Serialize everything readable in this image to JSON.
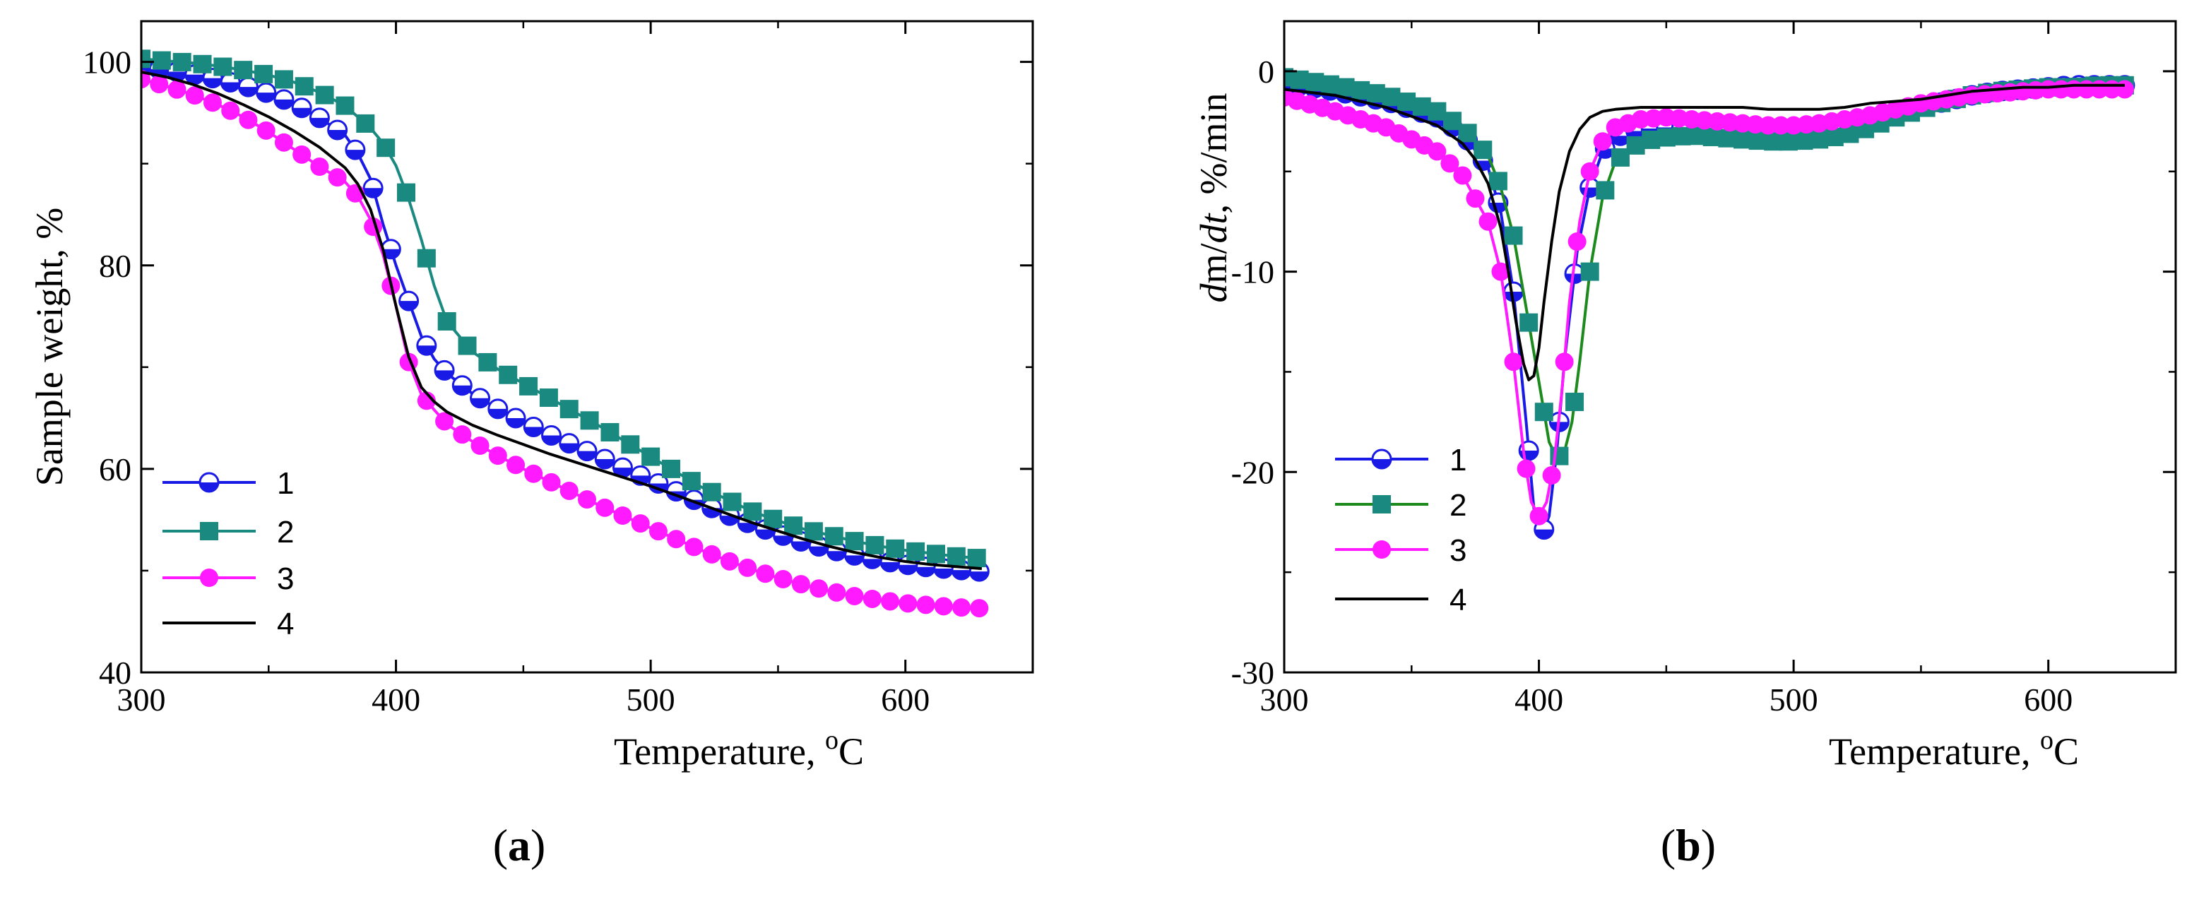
{
  "figure": {
    "background": "#ffffff"
  },
  "colors": {
    "s1": "#1a1ae6",
    "s2": "#1a8a80",
    "s3": "#ff1aff",
    "s4": "#000000",
    "green": "#1d8a1d"
  },
  "chart_data": [
    {
      "id": "a",
      "type": "line",
      "panel_label_open": "(",
      "panel_label_letter": "a",
      "panel_label_close": ")",
      "xlabel": "Temperature, ",
      "xlabel_unit_sup": "o",
      "xlabel_unit": "C",
      "ylabel": "Sample weight, %",
      "xlim": [
        300,
        650
      ],
      "ylim": [
        40,
        104
      ],
      "xticks": [
        300,
        400,
        500,
        600
      ],
      "yticks": [
        40,
        60,
        80,
        100
      ],
      "legend_position": "bottom-left",
      "series": [
        {
          "name": "1",
          "color": "#1a1ae6",
          "marker": "half-circle",
          "marker_every": 7,
          "x": [
            300,
            310,
            320,
            330,
            340,
            350,
            360,
            370,
            380,
            385,
            390,
            395,
            400,
            405,
            410,
            415,
            420,
            430,
            440,
            450,
            460,
            470,
            480,
            490,
            500,
            510,
            520,
            530,
            540,
            550,
            560,
            570,
            580,
            590,
            600,
            610,
            620,
            630
          ],
          "y": [
            99.5,
            99.2,
            98.8,
            98.3,
            97.7,
            96.9,
            95.9,
            94.5,
            92.8,
            91.0,
            88.5,
            84.0,
            80.0,
            76.5,
            73.0,
            70.8,
            69.4,
            67.4,
            65.9,
            64.6,
            63.4,
            62.3,
            61.2,
            60.0,
            58.9,
            57.8,
            56.6,
            55.5,
            54.5,
            53.6,
            52.8,
            52.1,
            51.5,
            51.0,
            50.6,
            50.3,
            50.1,
            49.9
          ]
        },
        {
          "name": "2",
          "color": "#1a8a80",
          "marker": "square",
          "marker_every": 8,
          "x": [
            300,
            310,
            320,
            330,
            340,
            350,
            360,
            370,
            380,
            390,
            395,
            400,
            405,
            410,
            415,
            420,
            430,
            440,
            450,
            460,
            470,
            480,
            490,
            500,
            510,
            520,
            530,
            540,
            550,
            560,
            570,
            580,
            590,
            600,
            610,
            620,
            630
          ],
          "y": [
            100.3,
            100.1,
            99.9,
            99.6,
            99.2,
            98.7,
            98.0,
            97.0,
            95.7,
            93.5,
            92.0,
            89.8,
            86.5,
            82.5,
            78.0,
            74.5,
            71.5,
            69.8,
            68.4,
            67.0,
            65.6,
            64.2,
            62.7,
            61.2,
            59.7,
            58.2,
            57.0,
            55.8,
            54.9,
            54.1,
            53.5,
            52.9,
            52.4,
            52.0,
            51.7,
            51.4,
            51.2
          ]
        },
        {
          "name": "3",
          "color": "#ff1aff",
          "marker": "circle",
          "marker_every": 7,
          "x": [
            300,
            310,
            320,
            330,
            340,
            350,
            360,
            370,
            380,
            385,
            390,
            395,
            400,
            405,
            410,
            415,
            420,
            430,
            440,
            450,
            460,
            470,
            480,
            490,
            500,
            510,
            520,
            530,
            540,
            550,
            560,
            570,
            580,
            590,
            600,
            610,
            620,
            630
          ],
          "y": [
            98.3,
            97.6,
            96.8,
            95.8,
            94.6,
            93.1,
            91.4,
            89.7,
            88.2,
            86.8,
            84.5,
            81.0,
            76.0,
            70.5,
            67.3,
            65.8,
            64.4,
            62.7,
            61.3,
            60.0,
            58.8,
            57.6,
            56.4,
            55.3,
            54.2,
            53.1,
            52.0,
            51.0,
            50.1,
            49.3,
            48.6,
            48.0,
            47.5,
            47.1,
            46.8,
            46.6,
            46.4,
            46.3
          ]
        },
        {
          "name": "4",
          "color": "#000000",
          "marker": "none",
          "x": [
            300,
            310,
            320,
            330,
            340,
            350,
            360,
            370,
            380,
            385,
            390,
            395,
            400,
            405,
            410,
            415,
            420,
            430,
            440,
            450,
            460,
            470,
            480,
            490,
            500,
            510,
            520,
            530,
            540,
            550,
            560,
            570,
            580,
            590,
            600,
            610,
            620,
            630
          ],
          "y": [
            99.0,
            98.5,
            97.8,
            96.9,
            95.8,
            94.6,
            93.2,
            91.6,
            89.6,
            88.0,
            85.5,
            81.5,
            76.0,
            71.0,
            68.0,
            66.6,
            65.6,
            64.3,
            63.3,
            62.4,
            61.5,
            60.7,
            59.9,
            59.1,
            58.3,
            57.4,
            56.5,
            55.6,
            54.7,
            53.9,
            53.1,
            52.4,
            51.8,
            51.3,
            50.9,
            50.6,
            50.4,
            50.2
          ]
        }
      ]
    },
    {
      "id": "b",
      "type": "line",
      "panel_label_open": "(",
      "panel_label_letter": "b",
      "panel_label_close": ")",
      "xlabel": "Temperature, ",
      "xlabel_unit_sup": "o",
      "xlabel_unit": "C",
      "ylabel_italic_1": "d",
      "ylabel_mid": "m/",
      "ylabel_italic_2": "dt",
      "ylabel_tail": ", %/min",
      "xlim": [
        300,
        650
      ],
      "ylim": [
        -30,
        2.5
      ],
      "xticks": [
        300,
        400,
        500,
        600
      ],
      "yticks": [
        -30,
        -20,
        -10,
        0
      ],
      "legend_position": "bottom-left",
      "series": [
        {
          "name": "1",
          "color": "#1a1ae6",
          "marker": "half-circle",
          "marker_every": 6,
          "x": [
            300,
            320,
            340,
            360,
            370,
            380,
            385,
            390,
            395,
            398,
            401,
            404,
            407,
            410,
            415,
            420,
            425,
            430,
            440,
            450,
            460,
            470,
            480,
            490,
            500,
            510,
            520,
            530,
            540,
            550,
            560,
            570,
            580,
            590,
            600,
            610,
            620,
            630
          ],
          "y": [
            -0.6,
            -1.0,
            -1.5,
            -2.3,
            -3.1,
            -4.8,
            -7.0,
            -11.0,
            -17.5,
            -21.8,
            -23.2,
            -22.2,
            -19.0,
            -14.5,
            -9.0,
            -5.8,
            -4.0,
            -3.3,
            -2.9,
            -2.8,
            -2.8,
            -2.9,
            -3.0,
            -3.0,
            -3.0,
            -3.0,
            -2.9,
            -2.6,
            -2.2,
            -1.8,
            -1.5,
            -1.2,
            -1.0,
            -0.9,
            -0.8,
            -0.7,
            -0.7,
            -0.7
          ]
        },
        {
          "name": "2",
          "color": "#1d8a1d",
          "marker_color": "#1a8a80",
          "marker": "square",
          "marker_every": 6,
          "x": [
            300,
            320,
            340,
            360,
            370,
            380,
            385,
            390,
            395,
            400,
            404,
            407,
            410,
            413,
            416,
            420,
            425,
            430,
            440,
            450,
            460,
            470,
            480,
            490,
            500,
            510,
            520,
            530,
            540,
            550,
            560,
            570,
            580,
            590,
            600,
            610,
            620,
            630
          ],
          "y": [
            -0.3,
            -0.7,
            -1.2,
            -2.0,
            -2.8,
            -4.2,
            -5.8,
            -8.2,
            -11.8,
            -15.5,
            -18.5,
            -19.3,
            -19.0,
            -17.5,
            -14.5,
            -10.0,
            -6.3,
            -4.5,
            -3.5,
            -3.3,
            -3.2,
            -3.3,
            -3.4,
            -3.5,
            -3.5,
            -3.4,
            -3.2,
            -2.8,
            -2.3,
            -1.9,
            -1.5,
            -1.2,
            -1.0,
            -0.9,
            -0.8,
            -0.8,
            -0.7,
            -0.7
          ]
        },
        {
          "name": "3",
          "color": "#ff1aff",
          "marker": "circle",
          "marker_every": 5,
          "x": [
            300,
            320,
            340,
            360,
            370,
            380,
            385,
            390,
            394,
            397,
            400,
            403,
            406,
            409,
            412,
            416,
            420,
            425,
            430,
            440,
            450,
            460,
            470,
            480,
            490,
            500,
            510,
            520,
            530,
            540,
            550,
            560,
            570,
            580,
            590,
            600,
            610,
            620,
            630
          ],
          "y": [
            -1.3,
            -2.0,
            -2.8,
            -4.0,
            -5.2,
            -7.5,
            -10.0,
            -14.5,
            -19.0,
            -21.5,
            -22.2,
            -21.5,
            -19.5,
            -16.0,
            -11.5,
            -7.5,
            -5.0,
            -3.5,
            -2.8,
            -2.4,
            -2.3,
            -2.4,
            -2.5,
            -2.6,
            -2.7,
            -2.7,
            -2.6,
            -2.4,
            -2.2,
            -1.9,
            -1.6,
            -1.4,
            -1.2,
            -1.1,
            -1.0,
            -0.9,
            -0.9,
            -0.9,
            -0.9
          ]
        },
        {
          "name": "4",
          "color": "#000000",
          "marker": "none",
          "x": [
            300,
            320,
            340,
            360,
            370,
            375,
            380,
            385,
            388,
            391,
            394,
            396,
            398,
            400,
            402,
            405,
            408,
            412,
            416,
            420,
            425,
            430,
            440,
            450,
            460,
            470,
            480,
            490,
            500,
            510,
            520,
            530,
            540,
            550,
            560,
            570,
            580,
            590,
            600,
            610,
            620,
            630
          ],
          "y": [
            -0.9,
            -1.2,
            -1.8,
            -2.7,
            -3.6,
            -4.4,
            -5.6,
            -7.8,
            -10.0,
            -12.5,
            -14.6,
            -15.4,
            -15.2,
            -13.8,
            -11.5,
            -8.5,
            -6.0,
            -4.0,
            -2.9,
            -2.3,
            -2.0,
            -1.9,
            -1.8,
            -1.8,
            -1.8,
            -1.8,
            -1.8,
            -1.9,
            -1.9,
            -1.9,
            -1.8,
            -1.6,
            -1.5,
            -1.4,
            -1.2,
            -1.0,
            -0.9,
            -0.8,
            -0.8,
            -0.7,
            -0.7,
            -0.7
          ]
        }
      ]
    }
  ]
}
